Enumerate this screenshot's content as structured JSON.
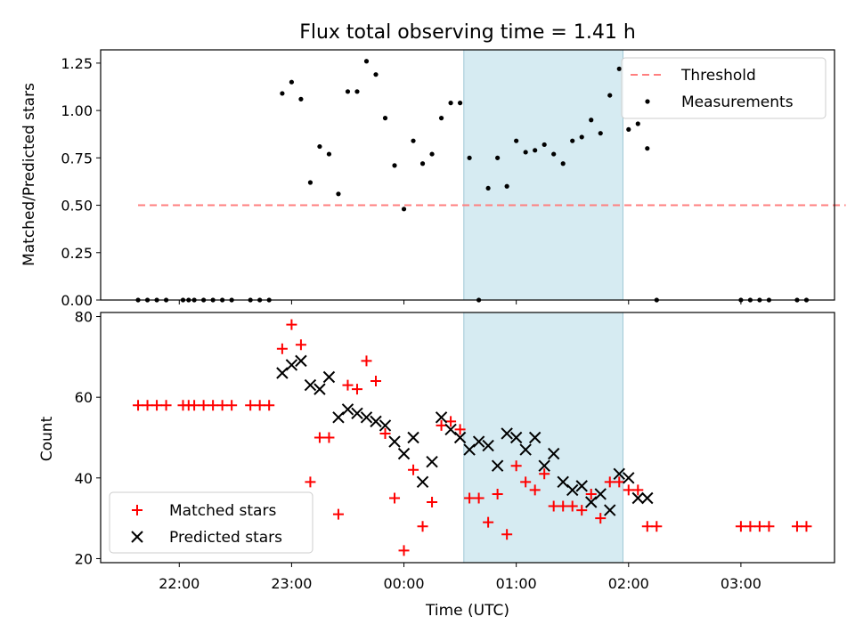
{
  "chart_data": [
    {
      "type": "scatter",
      "title": "Flux total observing time = 1.41 h",
      "xlabel": "",
      "ylabel": "Matched/Predicted stars",
      "xlim": [
        "21:18",
        "03:50"
      ],
      "ylim": [
        0,
        1.32
      ],
      "yticks": [
        "0.00",
        "0.25",
        "0.50",
        "0.75",
        "1.00",
        "1.25"
      ],
      "xticks": [
        "22:00",
        "23:00",
        "00:00",
        "01:00",
        "02:00",
        "03:00"
      ],
      "shaded_interval": [
        "00:32",
        "01:57"
      ],
      "legend_position": "upper right",
      "series": [
        {
          "name": "Threshold",
          "style": "dashed-line",
          "color": "#ff7f7f",
          "x": [
            "21:38",
            "03:56"
          ],
          "y": [
            0.5,
            0.5
          ]
        },
        {
          "name": "Measurements",
          "style": "dot",
          "color": "#000000",
          "x": [
            "21:38",
            "21:43",
            "21:48",
            "21:53",
            "22:02",
            "22:05",
            "22:08",
            "22:13",
            "22:18",
            "22:23",
            "22:28",
            "22:38",
            "22:43",
            "22:48",
            "22:55",
            "23:00",
            "23:05",
            "23:10",
            "23:15",
            "23:20",
            "23:25",
            "23:30",
            "23:35",
            "23:40",
            "23:45",
            "23:50",
            "23:55",
            "00:00",
            "00:05",
            "00:10",
            "00:15",
            "00:20",
            "00:25",
            "00:30",
            "00:35",
            "00:40",
            "00:45",
            "00:50",
            "00:55",
            "01:00",
            "01:05",
            "01:10",
            "01:15",
            "01:20",
            "01:25",
            "01:30",
            "01:35",
            "01:40",
            "01:45",
            "01:50",
            "01:55",
            "02:00",
            "02:05",
            "02:10",
            "02:15",
            "03:00",
            "03:05",
            "03:10",
            "03:15",
            "03:30",
            "03:35"
          ],
          "y": [
            0,
            0,
            0,
            0,
            0,
            0,
            0,
            0,
            0,
            0,
            0,
            0,
            0,
            0,
            1.09,
            1.15,
            1.06,
            0.62,
            0.81,
            0.77,
            0.56,
            1.1,
            1.1,
            1.26,
            1.19,
            0.96,
            0.71,
            0.48,
            0.84,
            0.72,
            0.77,
            0.96,
            1.04,
            1.04,
            0.75,
            0,
            0.59,
            0.75,
            0.6,
            0.84,
            0.78,
            0.79,
            0.82,
            0.77,
            0.72,
            0.84,
            0.86,
            0.95,
            0.88,
            1.08,
            1.22,
            0.9,
            0.93,
            0.8,
            0,
            0,
            0,
            0,
            0,
            0,
            0
          ]
        }
      ]
    },
    {
      "type": "scatter",
      "title": "",
      "xlabel": "Time (UTC)",
      "ylabel": "Count",
      "xlim": [
        "21:18",
        "03:50"
      ],
      "ylim": [
        19,
        81
      ],
      "yticks": [
        "20",
        "40",
        "60",
        "80"
      ],
      "xticks": [
        "22:00",
        "23:00",
        "00:00",
        "01:00",
        "02:00",
        "03:00"
      ],
      "shaded_interval": [
        "00:32",
        "01:57"
      ],
      "legend_position": "lower left",
      "series": [
        {
          "name": "Matched stars",
          "marker": "+",
          "color": "#ff0000",
          "x": [
            "21:38",
            "21:43",
            "21:48",
            "21:53",
            "22:02",
            "22:05",
            "22:08",
            "22:13",
            "22:18",
            "22:23",
            "22:28",
            "22:38",
            "22:43",
            "22:48",
            "22:55",
            "23:00",
            "23:05",
            "23:10",
            "23:15",
            "23:20",
            "23:25",
            "23:30",
            "23:35",
            "23:40",
            "23:45",
            "23:50",
            "23:55",
            "00:00",
            "00:05",
            "00:10",
            "00:15",
            "00:20",
            "00:25",
            "00:30",
            "00:35",
            "00:40",
            "00:45",
            "00:50",
            "00:55",
            "01:00",
            "01:05",
            "01:10",
            "01:15",
            "01:20",
            "01:25",
            "01:30",
            "01:35",
            "01:40",
            "01:45",
            "01:50",
            "01:55",
            "02:00",
            "02:05",
            "02:10",
            "02:15",
            "03:00",
            "03:05",
            "03:10",
            "03:15",
            "03:30",
            "03:35"
          ],
          "y": [
            58,
            58,
            58,
            58,
            58,
            58,
            58,
            58,
            58,
            58,
            58,
            58,
            58,
            58,
            72,
            78,
            73,
            39,
            50,
            50,
            31,
            63,
            62,
            69,
            64,
            51,
            35,
            22,
            42,
            28,
            34,
            53,
            54,
            52,
            35,
            35,
            29,
            36,
            26,
            43,
            39,
            37,
            41,
            33,
            33,
            33,
            32,
            36,
            30,
            39,
            39,
            37,
            37,
            28,
            28,
            28,
            28,
            28,
            28,
            28,
            28
          ]
        },
        {
          "name": "Predicted stars",
          "marker": "x",
          "color": "#000000",
          "x": [
            "22:55",
            "23:00",
            "23:05",
            "23:10",
            "23:15",
            "23:20",
            "23:25",
            "23:30",
            "23:35",
            "23:40",
            "23:45",
            "23:50",
            "23:55",
            "00:00",
            "00:05",
            "00:10",
            "00:15",
            "00:20",
            "00:25",
            "00:30",
            "00:35",
            "00:40",
            "00:45",
            "00:50",
            "00:55",
            "01:00",
            "01:05",
            "01:10",
            "01:15",
            "01:20",
            "01:25",
            "01:30",
            "01:35",
            "01:40",
            "01:45",
            "01:50",
            "01:55",
            "02:00",
            "02:05",
            "02:10"
          ],
          "y": [
            66,
            68,
            69,
            63,
            62,
            65,
            55,
            57,
            56,
            55,
            54,
            53,
            49,
            46,
            50,
            39,
            44,
            55,
            52,
            50,
            47,
            49,
            48,
            43,
            51,
            50,
            47,
            50,
            43,
            46,
            39,
            37,
            38,
            34,
            36,
            32,
            41,
            40,
            35,
            35
          ]
        }
      ]
    }
  ]
}
